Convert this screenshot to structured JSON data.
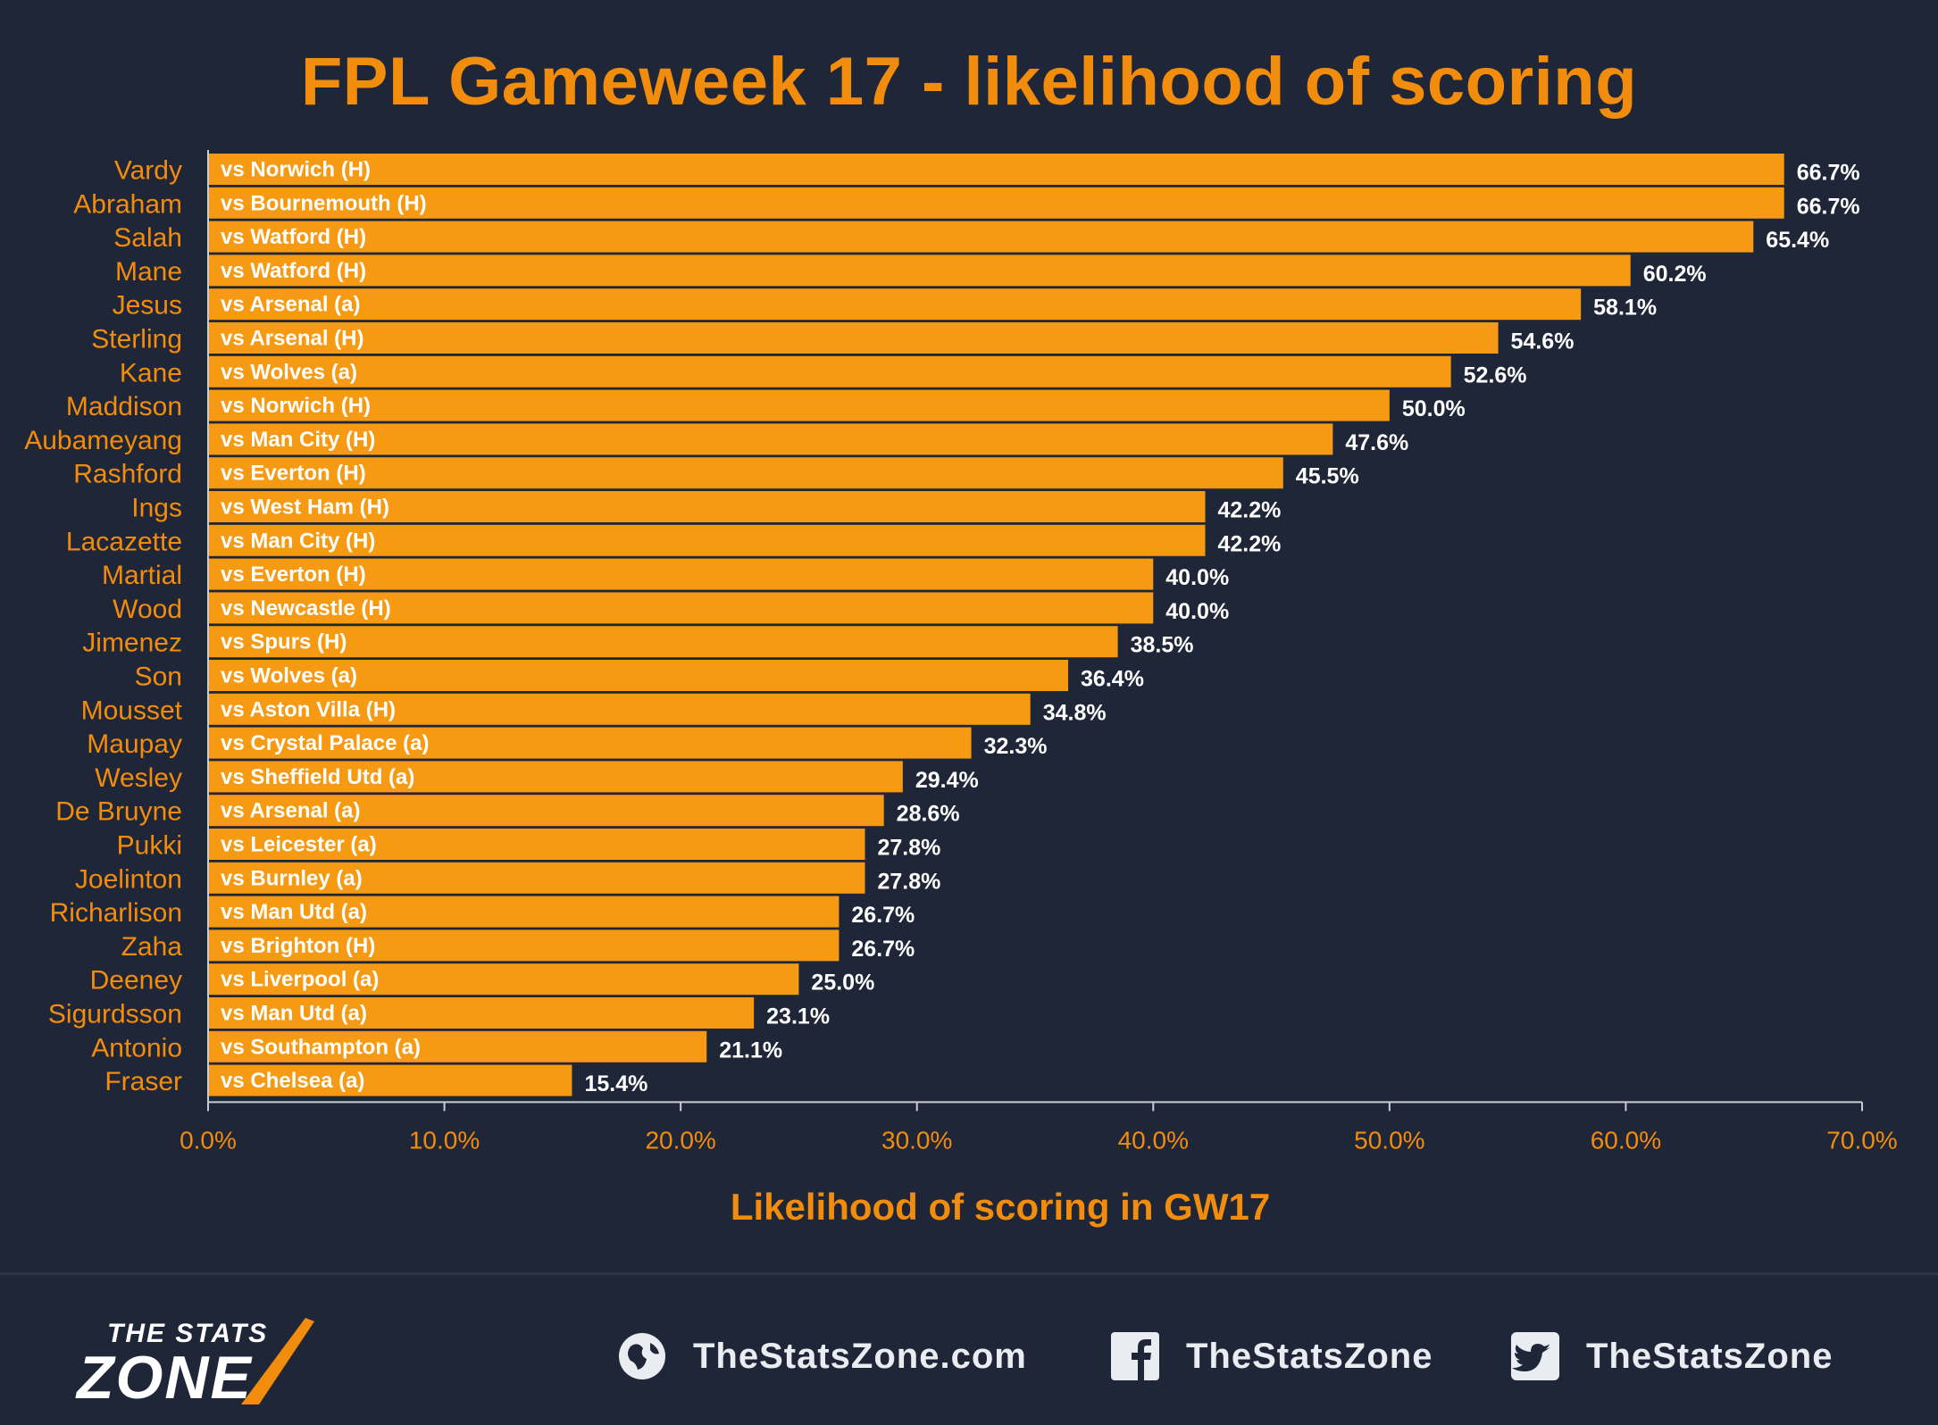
{
  "title": "FPL Gameweek 17 - likelihood of scoring",
  "colors": {
    "background": "#1f2638",
    "bar": "#f59a12",
    "accent": "#f28c0c",
    "value_label": "#ffffff",
    "bar_text": "#ffffff"
  },
  "chart_data": {
    "type": "bar",
    "orientation": "horizontal",
    "title": "FPL Gameweek 17 - likelihood of scoring",
    "xlabel": "Likelihood of scoring in GW17",
    "ylabel": "",
    "xlim": [
      0,
      70
    ],
    "x_ticks": [
      "0.0%",
      "10.0%",
      "20.0%",
      "30.0%",
      "40.0%",
      "50.0%",
      "60.0%",
      "70.0%"
    ],
    "grid": false,
    "categories": [
      "Vardy",
      "Abraham",
      "Salah",
      "Mane",
      "Jesus",
      "Sterling",
      "Kane",
      "Maddison",
      "Aubameyang",
      "Rashford",
      "Ings",
      "Lacazette",
      "Martial",
      "Wood",
      "Jimenez",
      "Son",
      "Mousset",
      "Maupay",
      "Wesley",
      "De Bruyne",
      "Pukki",
      "Joelinton",
      "Richarlison",
      "Zaha",
      "Deeney",
      "Sigurdsson",
      "Antonio",
      "Fraser"
    ],
    "values": [
      66.7,
      66.7,
      65.4,
      60.2,
      58.1,
      54.6,
      52.6,
      50.0,
      47.6,
      45.5,
      42.2,
      42.2,
      40.0,
      40.0,
      38.5,
      36.4,
      34.8,
      32.3,
      29.4,
      28.6,
      27.8,
      27.8,
      26.7,
      26.7,
      25.0,
      23.1,
      21.1,
      15.4
    ],
    "value_labels": [
      "66.7%",
      "66.7%",
      "65.4%",
      "60.2%",
      "58.1%",
      "54.6%",
      "52.6%",
      "50.0%",
      "47.6%",
      "45.5%",
      "42.2%",
      "42.2%",
      "40.0%",
      "40.0%",
      "38.5%",
      "36.4%",
      "34.8%",
      "32.3%",
      "29.4%",
      "28.6%",
      "27.8%",
      "27.8%",
      "26.7%",
      "26.7%",
      "25.0%",
      "23.1%",
      "21.1%",
      "15.4%"
    ],
    "fixtures": [
      "vs Norwich (H)",
      "vs Bournemouth (H)",
      "vs Watford (H)",
      "vs Watford (H)",
      "vs Arsenal (a)",
      "vs Arsenal (H)",
      "vs Wolves (a)",
      "vs Norwich (H)",
      "vs Man City (H)",
      "vs Everton (H)",
      "vs West Ham (H)",
      "vs Man City (H)",
      "vs Everton (H)",
      "vs Newcastle (H)",
      "vs Spurs (H)",
      "vs Wolves (a)",
      "vs Aston Villa (H)",
      "vs Crystal Palace (a)",
      "vs Sheffield Utd (a)",
      "vs Arsenal (a)",
      "vs Leicester (a)",
      "vs Burnley (a)",
      "vs Man Utd (a)",
      "vs Brighton (H)",
      "vs Liverpool (a)",
      "vs Man Utd (a)",
      "vs Southampton (a)",
      "vs Chelsea (a)"
    ]
  },
  "footer": {
    "logo_top": "THE STATS",
    "logo_bottom": "ZONE",
    "website": "TheStatsZone.com",
    "facebook": "TheStatsZone",
    "twitter": "TheStatsZone",
    "icons": [
      "globe-icon",
      "facebook-icon",
      "twitter-icon"
    ]
  }
}
